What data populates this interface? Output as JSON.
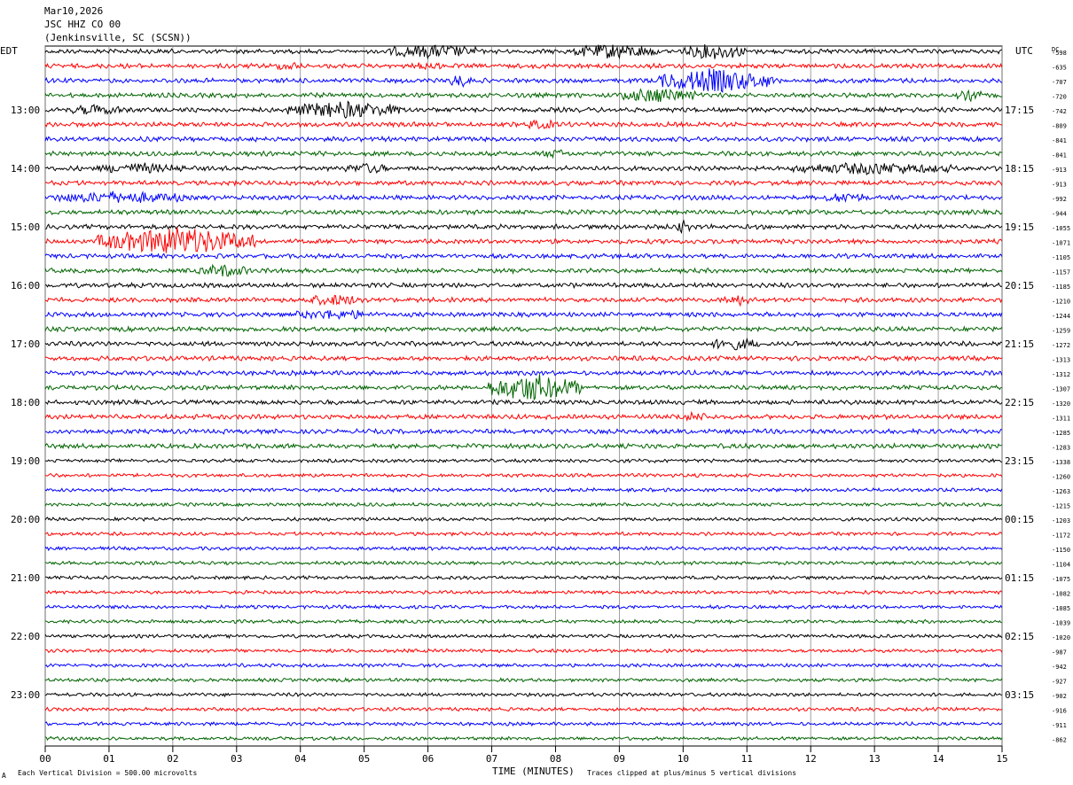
{
  "header": {
    "date": "Mar10,2026",
    "station": "JSC HHZ CO 00",
    "location": "(Jenkinsville, SC (SCSN))"
  },
  "left_zone_label": "EDT",
  "right_zone_label": "UTC",
  "dc_label": "DC",
  "footer": {
    "scale_note": "Each Vertical Division =  500.00 microvolts",
    "clip_note": "Traces clipped at plus/minus 5 vertical divisions",
    "mark": "A"
  },
  "chart_data": {
    "type": "line",
    "title": "",
    "xlabel": "TIME (MINUTES)",
    "xlim": [
      0,
      15
    ],
    "x_ticks": [
      "00",
      "01",
      "02",
      "03",
      "04",
      "05",
      "06",
      "07",
      "08",
      "09",
      "10",
      "11",
      "12",
      "13",
      "14",
      "15"
    ],
    "trace_colors": [
      "#000000",
      "#ff0000",
      "#0000ff",
      "#006400"
    ],
    "rows": 48,
    "edt_labels": [
      "13:00",
      "14:00",
      "15:00",
      "16:00",
      "17:00",
      "18:00",
      "19:00",
      "20:00",
      "21:00",
      "22:00",
      "23:00"
    ],
    "utc_labels": [
      "17:15",
      "18:15",
      "19:15",
      "20:15",
      "21:15",
      "22:15",
      "23:15",
      "00:15",
      "01:15",
      "02:15",
      "03:15"
    ],
    "dc_offsets": [
      "-598",
      "-635",
      "-707",
      "-720",
      "-742",
      "-809",
      "-841",
      "-841",
      "-913",
      "-913",
      "-992",
      "-944",
      "-1055",
      "-1071",
      "-1105",
      "-1157",
      "-1185",
      "-1210",
      "-1244",
      "-1259",
      "-1272",
      "-1313",
      "-1312",
      "-1307",
      "-1320",
      "-1311",
      "-1285",
      "-1283",
      "-1338",
      "-1260",
      "-1263",
      "-1215",
      "-1203",
      "-1172",
      "-1150",
      "-1104",
      "-1075",
      "-1082",
      "-1085",
      "-1039",
      "-1020",
      "-987",
      "-942",
      "-927",
      "-902",
      "-916",
      "-911",
      "-862"
    ],
    "events": [
      {
        "row": 0,
        "start_min": 5.4,
        "end_min": 6.8,
        "amp": 6
      },
      {
        "row": 0,
        "start_min": 8.3,
        "end_min": 9.6,
        "amp": 7
      },
      {
        "row": 0,
        "start_min": 10.0,
        "end_min": 11.0,
        "amp": 7
      },
      {
        "row": 1,
        "start_min": 3.6,
        "end_min": 4.0,
        "amp": 3
      },
      {
        "row": 1,
        "start_min": 5.8,
        "end_min": 6.2,
        "amp": 3
      },
      {
        "row": 2,
        "start_min": 6.3,
        "end_min": 6.7,
        "amp": 5
      },
      {
        "row": 2,
        "start_min": 9.6,
        "end_min": 11.4,
        "amp": 12
      },
      {
        "row": 3,
        "start_min": 9.0,
        "end_min": 10.2,
        "amp": 7
      },
      {
        "row": 3,
        "start_min": 14.3,
        "end_min": 14.7,
        "amp": 4
      },
      {
        "row": 4,
        "start_min": 0.4,
        "end_min": 1.2,
        "amp": 4
      },
      {
        "row": 4,
        "start_min": 3.8,
        "end_min": 5.6,
        "amp": 8
      },
      {
        "row": 5,
        "start_min": 7.5,
        "end_min": 8.0,
        "amp": 4
      },
      {
        "row": 7,
        "start_min": 7.8,
        "end_min": 8.2,
        "amp": 3
      },
      {
        "row": 8,
        "start_min": 0.8,
        "end_min": 2.2,
        "amp": 4
      },
      {
        "row": 8,
        "start_min": 4.7,
        "end_min": 5.4,
        "amp": 4
      },
      {
        "row": 8,
        "start_min": 11.7,
        "end_min": 14.2,
        "amp": 5
      },
      {
        "row": 10,
        "start_min": 0.1,
        "end_min": 2.2,
        "amp": 5
      },
      {
        "row": 10,
        "start_min": 12.2,
        "end_min": 12.9,
        "amp": 4
      },
      {
        "row": 12,
        "start_min": 9.9,
        "end_min": 10.1,
        "amp": 6
      },
      {
        "row": 13,
        "start_min": 0.8,
        "end_min": 3.3,
        "amp": 14
      },
      {
        "row": 15,
        "start_min": 2.4,
        "end_min": 3.2,
        "amp": 5
      },
      {
        "row": 17,
        "start_min": 4.0,
        "end_min": 5.0,
        "amp": 4
      },
      {
        "row": 17,
        "start_min": 10.6,
        "end_min": 11.1,
        "amp": 4
      },
      {
        "row": 18,
        "start_min": 3.9,
        "end_min": 5.1,
        "amp": 4
      },
      {
        "row": 20,
        "start_min": 10.4,
        "end_min": 11.2,
        "amp": 5
      },
      {
        "row": 23,
        "start_min": 6.9,
        "end_min": 8.4,
        "amp": 14
      },
      {
        "row": 25,
        "start_min": 9.9,
        "end_min": 10.4,
        "amp": 3
      }
    ]
  }
}
